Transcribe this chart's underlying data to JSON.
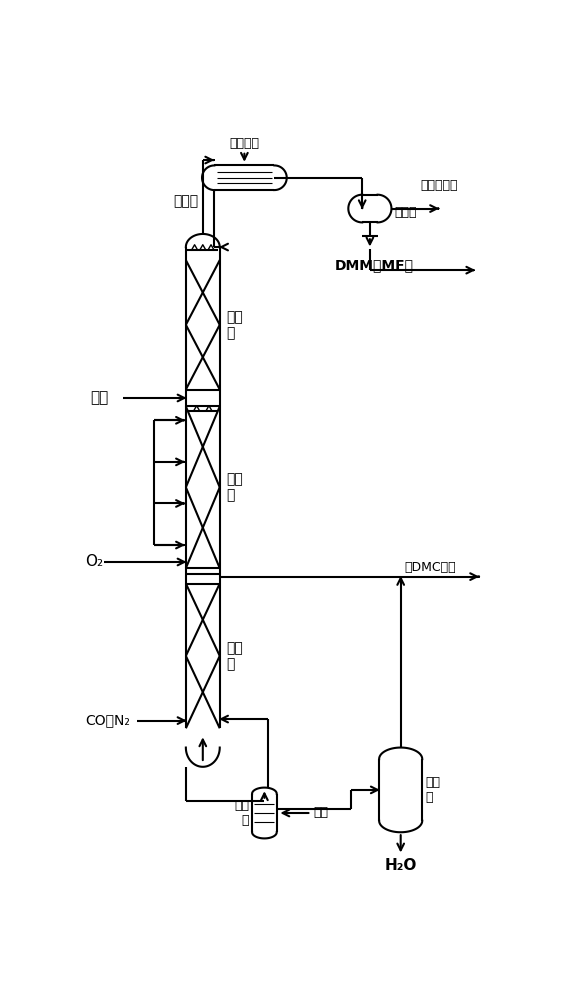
{
  "bg_color": "#ffffff",
  "line_color": "#000000",
  "fig_width": 5.76,
  "fig_height": 10.0,
  "dpi": 100,
  "labels": {
    "cooling_medium": "冷却介质",
    "condenser": "冷凝器",
    "non_condensable": "不凝性气体",
    "buffer_tank": "缓冲罐",
    "dmm_mf": "DMM、MF等",
    "methanol": "甲醇",
    "rectification": "精馏\n段",
    "reaction": "反应\n段",
    "stripping": "提馏\n段",
    "o2": "O₂",
    "co_n2": "CO、N₂",
    "reboiler_label": "再沸\n器",
    "steam": "蔯汽",
    "flash_tank": "闪蔻\n罐",
    "h2o": "H₂O",
    "crude_dmc": "粗DMC产品"
  }
}
